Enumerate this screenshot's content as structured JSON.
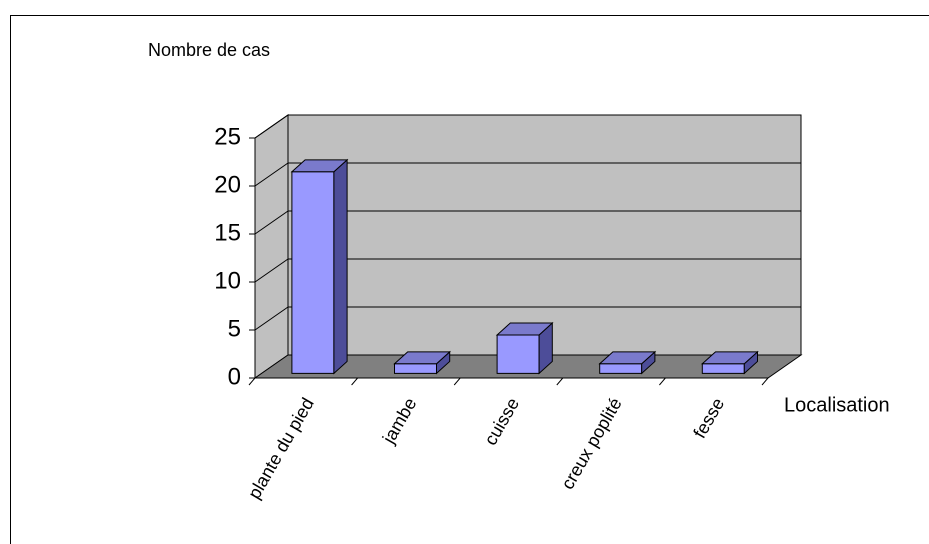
{
  "chart_data": {
    "type": "bar3d",
    "y_axis_label": "Nombre de cas",
    "x_axis_label": "Localisation",
    "categories": [
      "plante du pied",
      "jambe",
      "cuisse",
      "creux poplité",
      "fesse"
    ],
    "values": [
      21,
      1,
      4,
      1,
      1
    ],
    "color": "#9999ff",
    "ylim": [
      0,
      25
    ],
    "yticks": [
      0,
      5,
      10,
      15,
      20,
      25
    ],
    "grid": true
  }
}
